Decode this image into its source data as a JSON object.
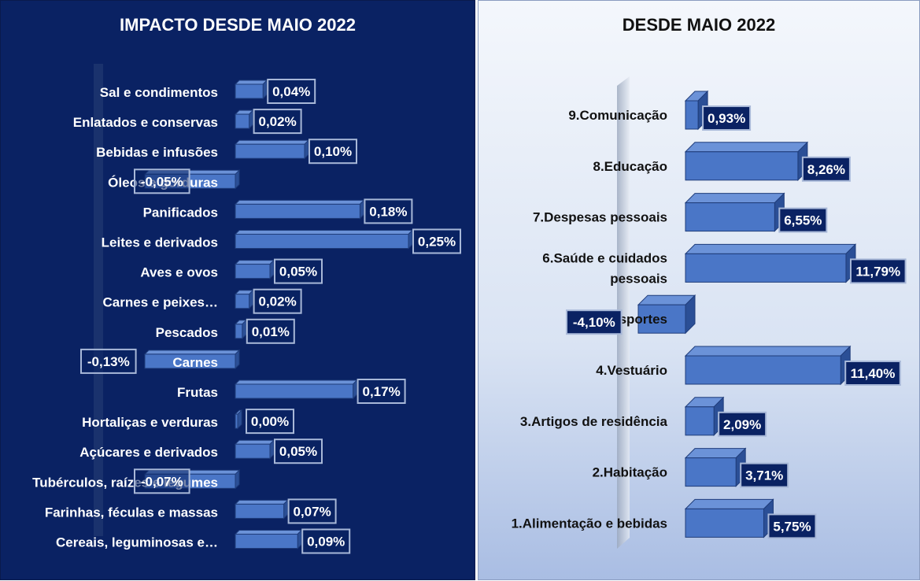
{
  "colors": {
    "left_background": "#0a2263",
    "bar_front": "#4a76c7",
    "bar_top": "#6b92d8",
    "bar_side": "#2b4f96",
    "label_box_dark": "#0a2263",
    "label_box_border": "#a8b8d8"
  },
  "chart_data": [
    {
      "type": "bar",
      "orientation": "horizontal",
      "style": "3d",
      "title": "IMPACTO DESDE MAIO 2022",
      "categories": [
        "Sal e condimentos",
        "Enlatados e conservas",
        "Bebidas e infusões",
        "Óleos e gorduras",
        "Panificados",
        "Leites e derivados",
        "Aves e ovos",
        "Carnes e peixes…",
        "Pescados",
        "Carnes",
        "Frutas",
        "Hortaliças e verduras",
        "Açúcares e derivados",
        "Tubérculos, raízes e legumes",
        "Farinhas, féculas e massas",
        "Cereais, leguminosas e…"
      ],
      "values": [
        0.04,
        0.02,
        0.1,
        -0.05,
        0.18,
        0.25,
        0.05,
        0.02,
        0.01,
        -0.13,
        0.17,
        0.0,
        0.05,
        -0.07,
        0.07,
        0.09
      ],
      "data_labels": [
        "0,04%",
        "0,02%",
        "0,10%",
        "-0,05%",
        "0,18%",
        "0,25%",
        "0,05%",
        "0,02%",
        "0,01%",
        "-0,13%",
        "0,17%",
        "0,00%",
        "0,05%",
        "-0,07%",
        "0,07%",
        "0,09%"
      ],
      "unit": "%",
      "grid": false,
      "legend": "none"
    },
    {
      "type": "bar",
      "orientation": "horizontal",
      "style": "3d",
      "title": "DESDE MAIO 2022",
      "categories": [
        "9.Comunicação",
        "8.Educação",
        "7.Despesas pessoais",
        "6.Saúde e cuidados pessoais",
        "5.Transportes",
        "4.Vestuário",
        "3.Artigos de residência",
        "2.Habitação",
        "1.Alimentação e bebidas"
      ],
      "values": [
        0.93,
        8.26,
        6.55,
        11.79,
        -4.1,
        11.4,
        2.09,
        3.71,
        5.75
      ],
      "data_labels": [
        "0,93%",
        "8,26%",
        "6,55%",
        "11,79%",
        "-4,10%",
        "11,40%",
        "2,09%",
        "3,71%",
        "5,75%"
      ],
      "unit": "%",
      "grid": false,
      "legend": "none"
    }
  ]
}
